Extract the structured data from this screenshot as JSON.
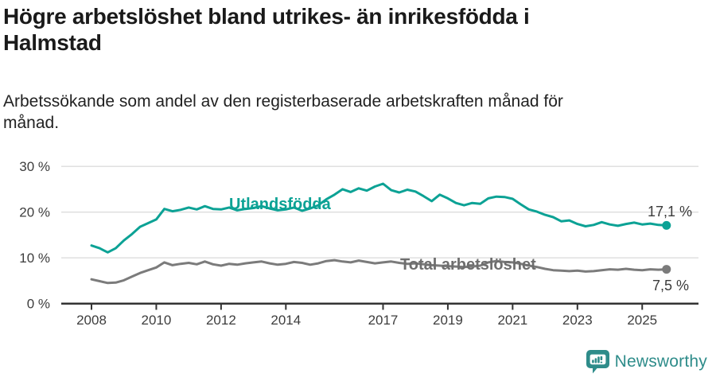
{
  "header": {
    "title": "Högre arbetslöshet bland utrikes- än inrikesfödda i\nHalmstad",
    "subtitle": "Arbetssökande som andel av den registerbaserade arbetskraften månad för\nmånad."
  },
  "footer": {
    "brand": "Newsworthy"
  },
  "theme": {
    "accent_teal": "#0ca295",
    "line_gray": "#7b7b7b",
    "series_label_gray": "#6e6e6e",
    "gridline": "#dddddd",
    "axis": "#333333",
    "tick_text": "#3d3d3d",
    "title_text": "#1a1a1a",
    "logo_teal": "#2e8c8a",
    "background": "#ffffff"
  },
  "chart_data": {
    "type": "line",
    "title": "Högre arbetslöshet bland utrikes- än inrikesfödda i Halmstad",
    "subtitle": "Arbetssökande som andel av den registerbaserade arbetskraften månad för månad.",
    "unit": "%",
    "xlabel": "",
    "ylabel": "",
    "ylim": [
      0,
      32
    ],
    "xlim": [
      2007.6,
      2026.4
    ],
    "grid": "horizontal",
    "legend": "inline-labels",
    "x": [
      2008.0,
      2008.25,
      2008.5,
      2008.75,
      2009.0,
      2009.25,
      2009.5,
      2009.75,
      2010.0,
      2010.25,
      2010.5,
      2010.75,
      2011.0,
      2011.25,
      2011.5,
      2011.75,
      2012.0,
      2012.25,
      2012.5,
      2012.75,
      2013.0,
      2013.25,
      2013.5,
      2013.75,
      2014.0,
      2014.25,
      2014.5,
      2014.75,
      2015.0,
      2015.25,
      2015.5,
      2015.75,
      2016.0,
      2016.25,
      2016.5,
      2016.75,
      2017.0,
      2017.25,
      2017.5,
      2017.75,
      2018.0,
      2018.25,
      2018.5,
      2018.75,
      2019.0,
      2019.25,
      2019.5,
      2019.75,
      2020.0,
      2020.25,
      2020.5,
      2020.75,
      2021.0,
      2021.25,
      2021.5,
      2021.75,
      2022.0,
      2022.25,
      2022.5,
      2022.75,
      2023.0,
      2023.25,
      2023.5,
      2023.75,
      2024.0,
      2024.25,
      2024.5,
      2024.75,
      2025.0,
      2025.25,
      2025.5,
      2025.75
    ],
    "series": [
      {
        "name": "Utlandsfödda",
        "color": "#0ca295",
        "end_label": "17,1 %",
        "end_value": 17.1,
        "values": [
          12.7,
          12.1,
          11.2,
          12.1,
          13.8,
          15.2,
          16.8,
          17.6,
          18.4,
          20.7,
          20.2,
          20.5,
          21.0,
          20.6,
          21.3,
          20.7,
          20.6,
          21.0,
          20.4,
          20.7,
          20.9,
          21.3,
          20.8,
          20.4,
          20.6,
          21.0,
          20.3,
          20.8,
          21.5,
          22.8,
          23.8,
          25.0,
          24.4,
          25.2,
          24.7,
          25.6,
          26.2,
          24.8,
          24.3,
          24.9,
          24.5,
          23.5,
          22.4,
          23.8,
          23.0,
          22.0,
          21.5,
          22.0,
          21.8,
          23.0,
          23.4,
          23.3,
          22.9,
          21.7,
          20.6,
          20.1,
          19.4,
          18.9,
          18.0,
          18.2,
          17.4,
          16.9,
          17.2,
          17.8,
          17.3,
          17.0,
          17.4,
          17.7,
          17.3,
          17.5,
          17.2,
          17.1
        ]
      },
      {
        "name": "Total arbetslöshet",
        "color": "#7b7b7b",
        "end_label": "7,5 %",
        "end_value": 7.5,
        "values": [
          5.3,
          4.9,
          4.5,
          4.6,
          5.1,
          5.9,
          6.7,
          7.3,
          7.9,
          9.0,
          8.4,
          8.7,
          8.9,
          8.6,
          9.2,
          8.6,
          8.3,
          8.7,
          8.5,
          8.8,
          9.0,
          9.2,
          8.8,
          8.5,
          8.7,
          9.1,
          8.9,
          8.5,
          8.8,
          9.3,
          9.5,
          9.2,
          9.0,
          9.4,
          9.1,
          8.8,
          9.0,
          9.2,
          8.9,
          8.7,
          8.8,
          8.6,
          8.4,
          8.3,
          8.2,
          8.1,
          8.0,
          8.1,
          8.3,
          9.0,
          9.3,
          9.1,
          9.0,
          8.7,
          8.3,
          8.0,
          7.6,
          7.3,
          7.2,
          7.1,
          7.2,
          7.0,
          7.1,
          7.3,
          7.5,
          7.4,
          7.6,
          7.4,
          7.3,
          7.5,
          7.4,
          7.5
        ]
      }
    ],
    "xticks": [
      {
        "value": 2008,
        "label": "2008"
      },
      {
        "value": 2010,
        "label": "2010"
      },
      {
        "value": 2012,
        "label": "2012"
      },
      {
        "value": 2014,
        "label": "2014"
      },
      {
        "value": 2017,
        "label": "2017"
      },
      {
        "value": 2019,
        "label": "2019"
      },
      {
        "value": 2021,
        "label": "2021"
      },
      {
        "value": 2023,
        "label": "2023"
      },
      {
        "value": 2025,
        "label": "2025"
      }
    ],
    "yticks": [
      {
        "value": 0,
        "label": "0 %"
      },
      {
        "value": 10,
        "label": "10 %"
      },
      {
        "value": 20,
        "label": "20 %"
      },
      {
        "value": 30,
        "label": "30 %"
      }
    ]
  }
}
